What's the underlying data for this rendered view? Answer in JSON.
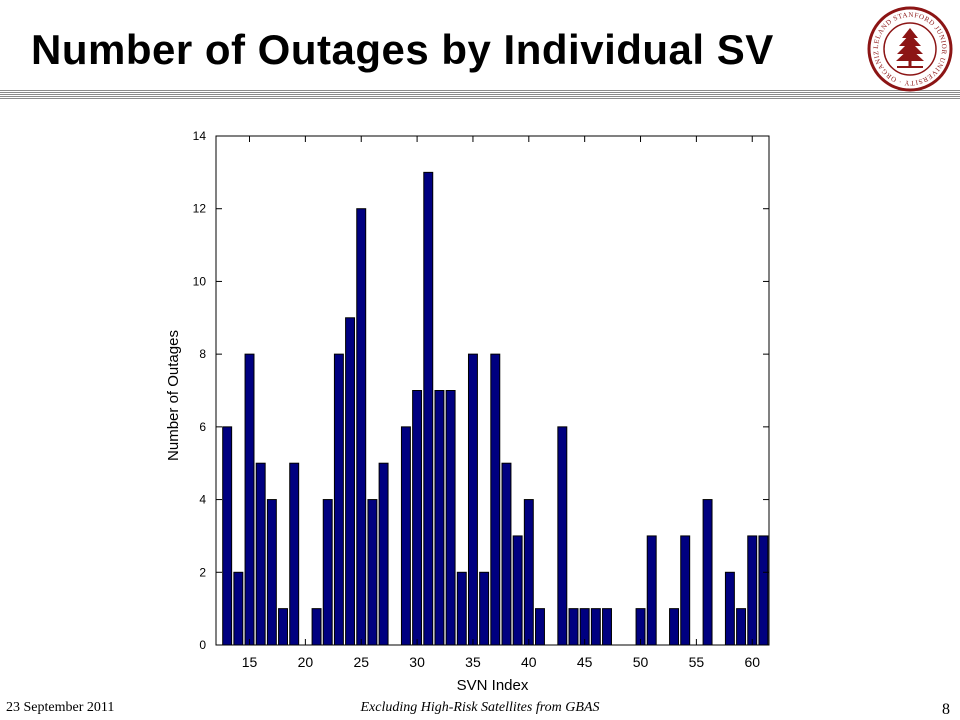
{
  "slide": {
    "title": "Number of Outages by Individual SV",
    "footer_date": "23 September 2011",
    "footer_subtitle": "Excluding High-Risk Satellites from GBAS",
    "page_number": "8",
    "logo_text": "LELAND STANFORD JUNIOR UNIVERSITY · ORGANIZED 1891 ·",
    "colors": {
      "bar_fill": "#000080",
      "seal": "#8c1515"
    }
  },
  "chart_data": {
    "type": "bar",
    "title": "",
    "xlabel": "SVN Index",
    "ylabel": "Number of Outages",
    "xlim": [
      12,
      61.5
    ],
    "ylim": [
      0,
      14
    ],
    "xticks": [
      15,
      20,
      25,
      30,
      35,
      40,
      45,
      50,
      55,
      60
    ],
    "yticks": [
      0,
      2,
      4,
      6,
      8,
      10,
      12,
      14
    ],
    "grid": false,
    "x": [
      13,
      14,
      15,
      16,
      17,
      18,
      19,
      20,
      21,
      22,
      23,
      24,
      25,
      26,
      27,
      28,
      29,
      30,
      31,
      32,
      33,
      34,
      35,
      36,
      37,
      38,
      39,
      40,
      41,
      42,
      43,
      44,
      45,
      46,
      47,
      48,
      49,
      50,
      51,
      52,
      53,
      54,
      55,
      56,
      57,
      58,
      59,
      60,
      61
    ],
    "values": [
      6,
      2,
      8,
      5,
      4,
      1,
      5,
      0,
      1,
      4,
      8,
      9,
      12,
      4,
      5,
      0,
      6,
      7,
      13,
      7,
      7,
      2,
      8,
      2,
      8,
      5,
      3,
      4,
      1,
      0,
      6,
      1,
      1,
      1,
      1,
      0,
      0,
      1,
      3,
      0,
      1,
      3,
      0,
      4,
      0,
      2,
      1,
      3,
      3
    ]
  }
}
